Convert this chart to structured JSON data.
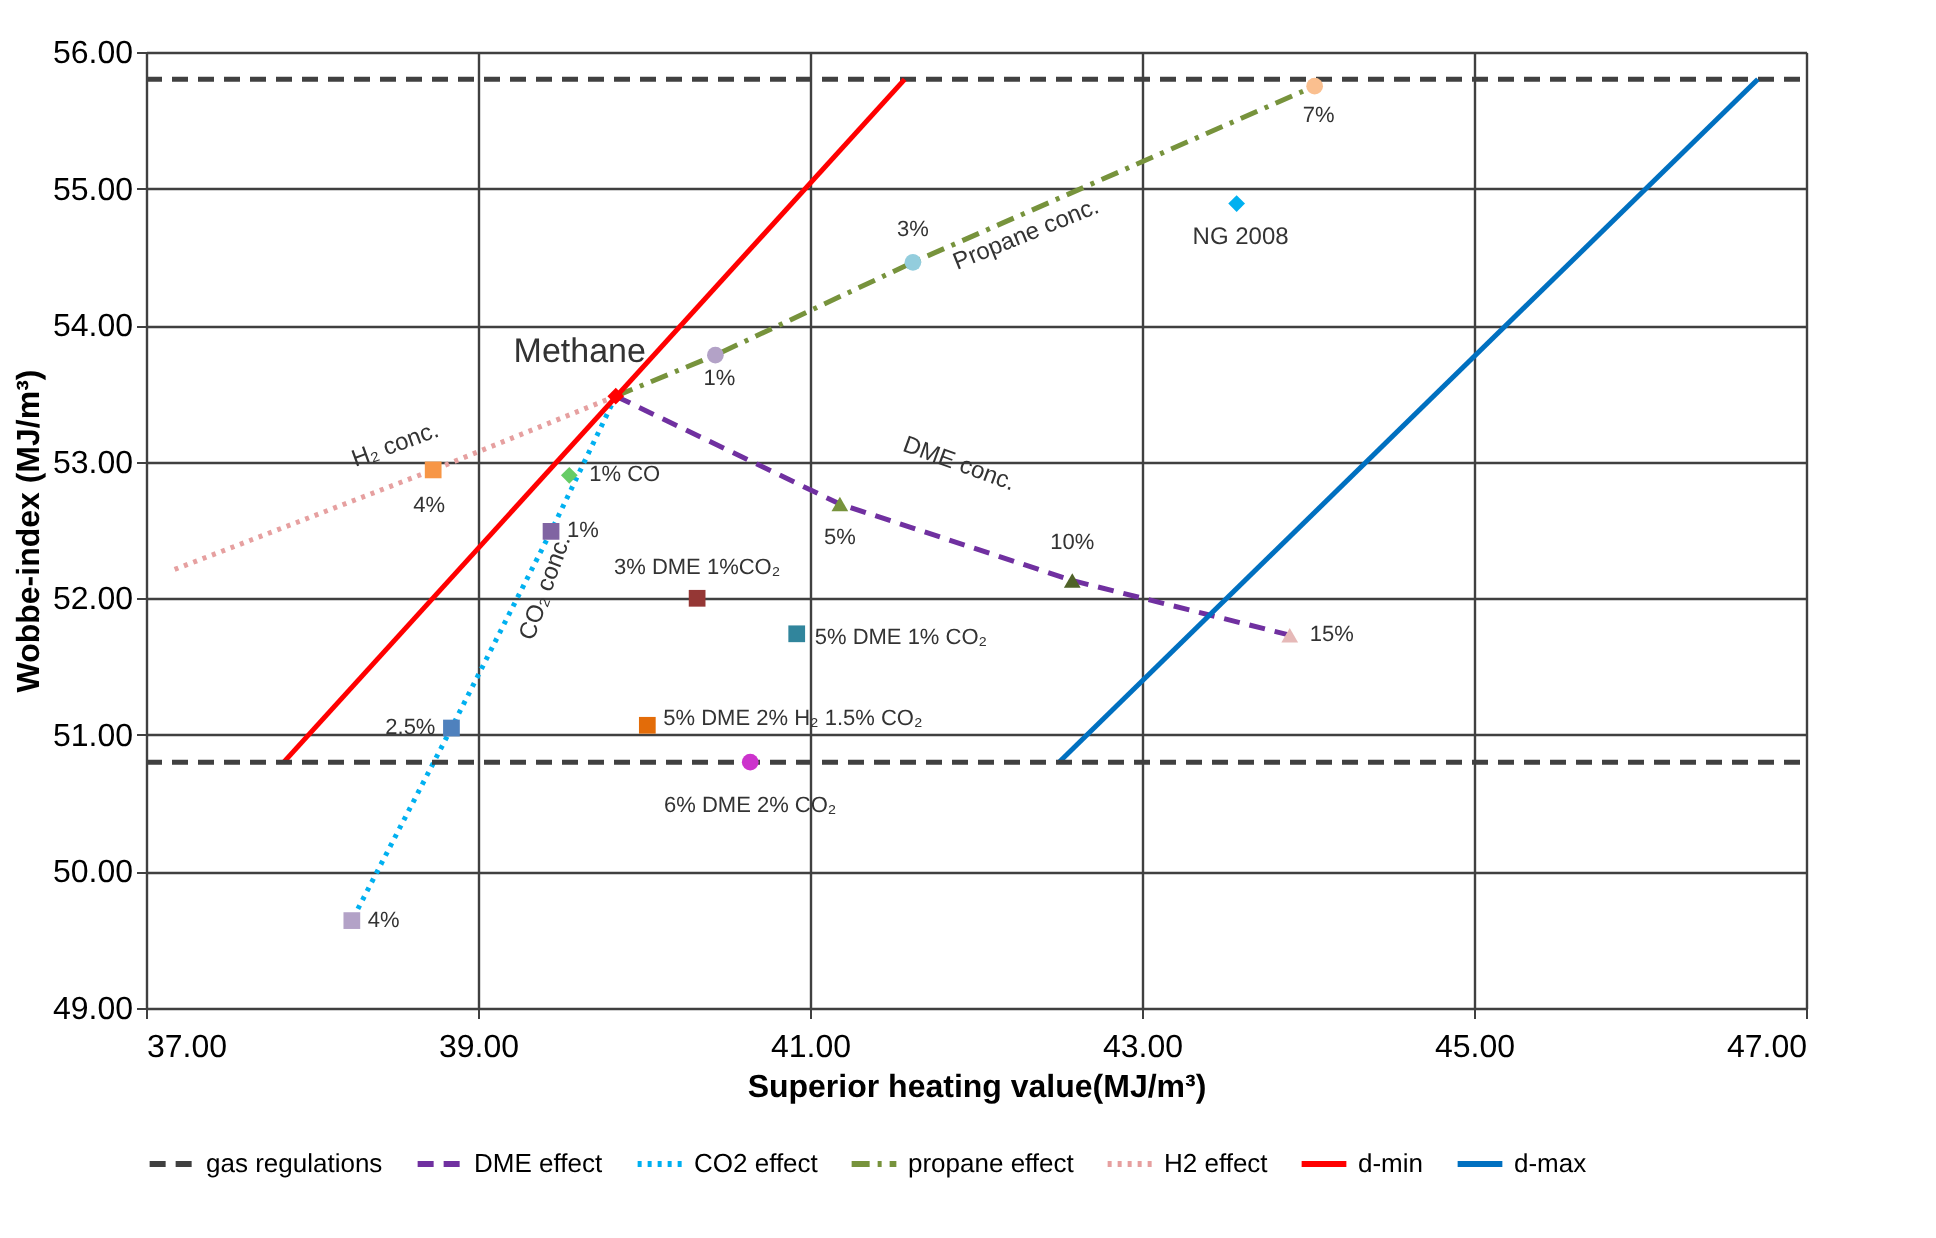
{
  "chart_data": {
    "type": "line",
    "xlabel": "Superior heating value(MJ/m³)",
    "ylabel": "Wobbe-index (MJ/m³)",
    "xlim": [
      37,
      47
    ],
    "xticks": [
      {
        "value": 37,
        "label": "37.00"
      },
      {
        "value": 39,
        "label": "39.00"
      },
      {
        "value": 41,
        "label": "41.00"
      },
      {
        "value": 43,
        "label": "43.00"
      },
      {
        "value": 45,
        "label": "45.00"
      },
      {
        "value": 47,
        "label": "47.00"
      }
    ],
    "ylim": [
      49,
      56
    ],
    "yticks": [
      {
        "value": 49,
        "label": "49.00"
      },
      {
        "value": 50,
        "label": "50.00"
      },
      {
        "value": 51,
        "label": "51.00"
      },
      {
        "value": 52,
        "label": "52.00"
      },
      {
        "value": 53,
        "label": "53.00"
      },
      {
        "value": 54,
        "label": "54.00"
      },
      {
        "value": 55,
        "label": "55.00"
      },
      {
        "value": 56,
        "label": "56.00"
      }
    ],
    "grid": true,
    "legend": "bottom",
    "ref_lines": [
      {
        "axis": "y",
        "value": 55.8,
        "label": "gas regulations",
        "color": "#404040",
        "line_style": "dashed"
      },
      {
        "axis": "y",
        "value": 50.8,
        "color": "#404040",
        "line_style": "dashed"
      }
    ],
    "series": [
      {
        "name": "DME effect",
        "line_style": "dashed",
        "color": "#7030a0",
        "x": [
          39.83,
          41.18,
          42.58,
          43.89
        ],
        "values": [
          53.48,
          52.69,
          52.13,
          51.73
        ]
      },
      {
        "name": "CO2 effect",
        "line_style": "dotted",
        "color": "#00b0f0",
        "x": [
          39.83,
          39.44,
          38.84,
          38.24
        ],
        "values": [
          53.48,
          52.49,
          51.05,
          49.64
        ]
      },
      {
        "name": "propane effect",
        "line_style": "dashdot",
        "color": "#77933c",
        "x": [
          39.83,
          40.43,
          41.62,
          44.04
        ],
        "values": [
          53.48,
          53.78,
          54.46,
          55.75
        ]
      },
      {
        "name": "H2 effect",
        "line_style": "dotted",
        "color": "#e6a0a0",
        "x": [
          39.83,
          38.73,
          37.17
        ],
        "values": [
          53.48,
          52.94,
          52.21
        ]
      },
      {
        "name": "d-min",
        "line_style": "solid",
        "color": "#ff0000",
        "x": [
          37.83,
          41.57
        ],
        "values": [
          50.8,
          55.8
        ]
      },
      {
        "name": "d-max",
        "line_style": "solid",
        "color": "#0070c0",
        "x": [
          42.5,
          46.71
        ],
        "values": [
          50.8,
          55.8
        ]
      },
      {
        "type": "scatter",
        "marker": "square",
        "x": [
          38.73,
          39.44,
          38.84,
          38.24,
          40.32,
          40.92,
          40.02
        ],
        "values": [
          52.94,
          52.49,
          51.05,
          49.64,
          52.0,
          51.74,
          51.07
        ],
        "colors": [
          "#f79646",
          "#8064a2",
          "#4f81bd",
          "#b3a2c7",
          "#953735",
          "#31859c",
          "#e36c09"
        ]
      },
      {
        "type": "scatter",
        "marker": "triangle",
        "x": [
          41.18,
          42.58,
          43.89
        ],
        "values": [
          52.69,
          52.13,
          51.73
        ],
        "colors": [
          "#77933c",
          "#4f6228",
          "#e6b9b8"
        ]
      },
      {
        "type": "scatter",
        "marker": "circle",
        "x": [
          40.43,
          41.62,
          44.04,
          40.64
        ],
        "values": [
          53.78,
          54.46,
          55.75,
          50.8
        ],
        "colors": [
          "#b3a2c7",
          "#93cddd",
          "#fabf8f",
          "#cc33cc"
        ]
      },
      {
        "type": "scatter",
        "marker": "diamond",
        "x": [
          39.83,
          43.57,
          39.55
        ],
        "values": [
          53.48,
          54.89,
          52.9
        ],
        "colors": [
          "#ff0000",
          "#00b0f0",
          "#66cc66"
        ]
      }
    ],
    "annotations": [
      {
        "text": "Methane",
        "x": 39.83,
        "y": 53.48
      },
      {
        "text": "NG 2008",
        "x": 43.57,
        "y": 54.89
      },
      {
        "text": "1%",
        "x": 40.43,
        "y": 53.78
      },
      {
        "text": "3%",
        "x": 41.62,
        "y": 54.46
      },
      {
        "text": "7%",
        "x": 44.04,
        "y": 55.75
      },
      {
        "text": "5%",
        "x": 41.18,
        "y": 52.69
      },
      {
        "text": "10%",
        "x": 42.58,
        "y": 52.13
      },
      {
        "text": "15%",
        "x": 43.89,
        "y": 51.73
      },
      {
        "text": "4%",
        "x": 38.73,
        "y": 52.94
      },
      {
        "text": "1% CO",
        "x": 39.55,
        "y": 52.9
      },
      {
        "text": "1%",
        "x": 39.44,
        "y": 52.49
      },
      {
        "text": "2.5%",
        "x": 38.84,
        "y": 51.05
      },
      {
        "text": "4%",
        "x": 38.24,
        "y": 49.64
      },
      {
        "text": "3% DME 1%CO₂",
        "x": 40.32,
        "y": 52.0
      },
      {
        "text": "5% DME 1% CO₂",
        "x": 40.92,
        "y": 51.74
      },
      {
        "text": "5% DME 2% H₂ 1.5% CO₂",
        "x": 40.02,
        "y": 51.07
      },
      {
        "text": "6% DME 2% CO₂",
        "x": 40.64,
        "y": 50.8
      },
      "H₂ conc.",
      "DME conc.",
      "Propane conc.",
      "CO₂ conc."
    ]
  }
}
